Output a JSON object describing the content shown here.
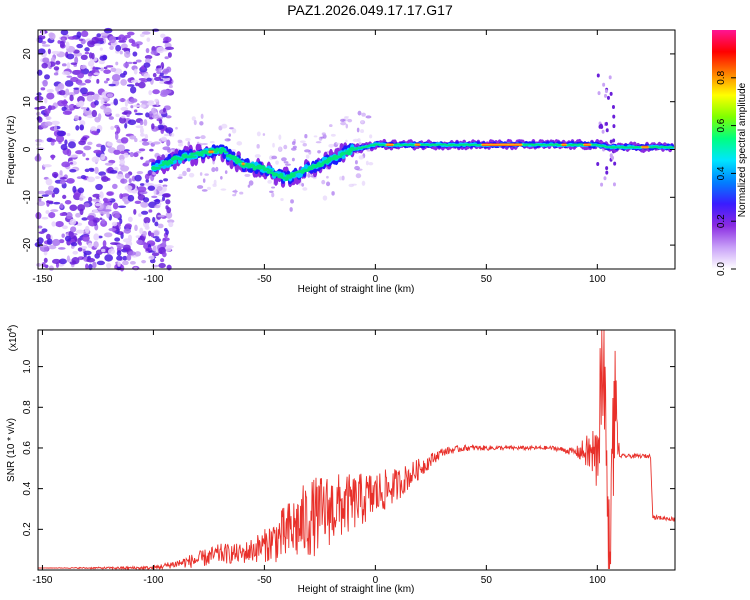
{
  "title": "PAZ1.2026.049.17.17.G17",
  "colors": {
    "snr_line": "#e8302a",
    "colormap": [
      "#ffffff",
      "#c8a0f8",
      "#8a2be2",
      "#3a1cff",
      "#0080ff",
      "#00e5ff",
      "#00ff80",
      "#80ff00",
      "#ffff00",
      "#ff8000",
      "#ff0000",
      "#ff1493"
    ]
  },
  "chart_data": [
    {
      "type": "heatmap",
      "name": "spectrogram",
      "xlabel": "Height of straight line (km)",
      "ylabel": "Frequency (Hz)",
      "xlim": [
        -152,
        135
      ],
      "ylim": [
        -25,
        25
      ],
      "xticks": [
        "-150",
        "-100",
        "-50",
        "0",
        "50",
        "100"
      ],
      "xtick_values": [
        -150,
        -100,
        -50,
        0,
        50,
        100
      ],
      "yticks": [
        "20",
        "10",
        "0",
        "-10",
        "-20"
      ],
      "ytick_values": [
        20,
        10,
        0,
        -10,
        -20
      ],
      "colorbar": {
        "label": "Normalized spectral amplitude",
        "range": [
          0,
          1
        ],
        "ticks": [
          "0.0",
          "0.2",
          "0.4",
          "0.6",
          "0.8"
        ],
        "tick_values": [
          0.0,
          0.2,
          0.4,
          0.6,
          0.8
        ]
      },
      "ridge": {
        "x": [
          -100,
          -90,
          -80,
          -70,
          -60,
          -50,
          -40,
          -30,
          -20,
          -10,
          0,
          20,
          40,
          60,
          80,
          100,
          105,
          135
        ],
        "freq": [
          -4,
          -2,
          -1,
          0,
          -3,
          -4,
          -6,
          -4,
          -2,
          0,
          1,
          1,
          1,
          1,
          1,
          1,
          0.5,
          0.5
        ]
      }
    },
    {
      "type": "line",
      "name": "snr",
      "xlabel": "Height of straight line (km)",
      "ylabel": "SNR (10 * v/v)",
      "y_scale_label": "(x10",
      "y_scale_exp": "4",
      "y_scale_suffix": ")",
      "xlim": [
        -152,
        135
      ],
      "ylim": [
        0,
        1.18
      ],
      "xticks": [
        "-150",
        "-100",
        "-50",
        "0",
        "50",
        "100"
      ],
      "xtick_values": [
        -150,
        -100,
        -50,
        0,
        50,
        100
      ],
      "yticks": [
        "0.2",
        "0.4",
        "0.6",
        "0.8",
        "1.0"
      ],
      "ytick_values": [
        0.2,
        0.4,
        0.6,
        0.8,
        1.0
      ],
      "x": [
        -152,
        -120,
        -100,
        -90,
        -80,
        -70,
        -60,
        -50,
        -40,
        -30,
        -20,
        -10,
        0,
        10,
        20,
        30,
        40,
        60,
        80,
        90,
        95,
        100,
        103,
        105,
        108,
        110,
        115,
        124,
        125,
        135
      ],
      "y": [
        0.01,
        0.01,
        0.01,
        0.03,
        0.05,
        0.08,
        0.08,
        0.12,
        0.18,
        0.25,
        0.3,
        0.33,
        0.37,
        0.42,
        0.5,
        0.58,
        0.6,
        0.6,
        0.6,
        0.58,
        0.58,
        0.55,
        1.18,
        0.05,
        0.85,
        0.56,
        0.56,
        0.56,
        0.26,
        0.25
      ],
      "noise": [
        0.0,
        0.005,
        0.01,
        0.02,
        0.04,
        0.05,
        0.05,
        0.08,
        0.15,
        0.2,
        0.18,
        0.14,
        0.12,
        0.08,
        0.05,
        0.02,
        0.015,
        0.01,
        0.01,
        0.02,
        0.08,
        0.2,
        0.4,
        0.3,
        0.3,
        0.01,
        0.01,
        0.01,
        0.01,
        0.01
      ]
    }
  ]
}
